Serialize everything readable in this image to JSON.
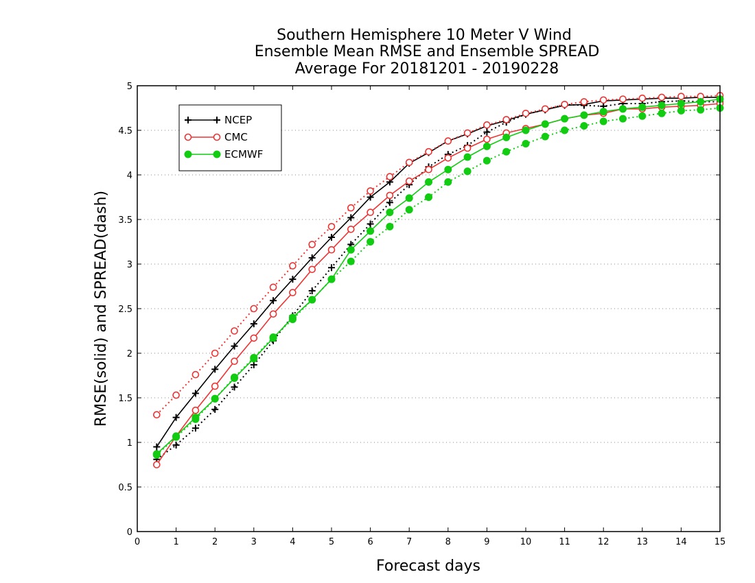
{
  "chart_data": {
    "type": "line",
    "title": [
      "Southern Hemisphere 10 Meter V Wind",
      "Ensemble Mean RMSE and Ensemble SPREAD",
      "Average For 20181201 - 20190228"
    ],
    "xlabel": "Forecast days",
    "ylabel": "RMSE(solid) and SPREAD(dash)",
    "xlim": [
      0,
      15
    ],
    "ylim": [
      0,
      5
    ],
    "xticks": [
      "0",
      "1",
      "2",
      "3",
      "4",
      "5",
      "6",
      "7",
      "8",
      "9",
      "10",
      "11",
      "12",
      "13",
      "14",
      "15"
    ],
    "yticks": [
      "0",
      "0.5",
      "1",
      "1.5",
      "2",
      "2.5",
      "3",
      "3.5",
      "4",
      "4.5",
      "5"
    ],
    "grid": "horizontal dotted",
    "legend_position": "top-left",
    "x": [
      0.5,
      1,
      1.5,
      2,
      2.5,
      3,
      3.5,
      4,
      4.5,
      5,
      5.5,
      6,
      6.5,
      7,
      7.5,
      8,
      8.5,
      9,
      9.5,
      10,
      10.5,
      11,
      11.5,
      12,
      12.5,
      13,
      13.5,
      14,
      14.5,
      15
    ],
    "series": [
      {
        "name": "NCEP",
        "marker": "plus",
        "color": "#000000",
        "rmse": [
          0.95,
          1.28,
          1.55,
          1.82,
          2.08,
          2.33,
          2.59,
          2.83,
          3.07,
          3.3,
          3.52,
          3.75,
          3.92,
          4.13,
          4.25,
          4.38,
          4.46,
          4.55,
          4.61,
          4.68,
          4.73,
          4.78,
          4.79,
          4.83,
          4.84,
          4.85,
          4.86,
          4.86,
          4.87,
          4.87
        ],
        "spread": [
          0.81,
          0.97,
          1.16,
          1.37,
          1.62,
          1.87,
          2.14,
          2.42,
          2.7,
          2.96,
          3.22,
          3.45,
          3.69,
          3.89,
          4.09,
          4.23,
          4.33,
          4.48,
          4.59,
          4.68,
          4.73,
          4.79,
          4.78,
          4.77,
          4.8,
          4.8,
          4.82,
          4.83,
          4.82,
          4.82
        ]
      },
      {
        "name": "CMC",
        "marker": "open-circle",
        "color": "#ee3333",
        "rmse": [
          0.75,
          1.07,
          1.36,
          1.63,
          1.91,
          2.17,
          2.44,
          2.68,
          2.94,
          3.16,
          3.39,
          3.58,
          3.77,
          3.93,
          4.06,
          4.19,
          4.3,
          4.4,
          4.47,
          4.52,
          4.57,
          4.63,
          4.67,
          4.69,
          4.74,
          4.74,
          4.76,
          4.77,
          4.78,
          4.8
        ],
        "spread": [
          1.31,
          1.53,
          1.76,
          2.0,
          2.25,
          2.5,
          2.74,
          2.98,
          3.22,
          3.42,
          3.63,
          3.82,
          3.98,
          4.14,
          4.26,
          4.38,
          4.47,
          4.56,
          4.62,
          4.69,
          4.74,
          4.79,
          4.82,
          4.84,
          4.85,
          4.86,
          4.87,
          4.88,
          4.88,
          4.89
        ]
      },
      {
        "name": "ECMWF",
        "marker": "filled-circle",
        "color": "#11cc11",
        "rmse": [
          0.87,
          1.07,
          1.28,
          1.49,
          1.72,
          1.94,
          2.17,
          2.4,
          2.6,
          2.83,
          3.16,
          3.37,
          3.58,
          3.74,
          3.92,
          4.06,
          4.2,
          4.32,
          4.42,
          4.5,
          4.57,
          4.63,
          4.67,
          4.71,
          4.74,
          4.76,
          4.78,
          4.8,
          4.82,
          4.85
        ],
        "spread": [
          0.86,
          1.06,
          1.26,
          1.49,
          1.73,
          1.95,
          2.18,
          2.38,
          2.6,
          2.83,
          3.03,
          3.25,
          3.42,
          3.61,
          3.75,
          3.92,
          4.04,
          4.16,
          4.26,
          4.35,
          4.43,
          4.5,
          4.55,
          4.6,
          4.63,
          4.66,
          4.69,
          4.72,
          4.73,
          4.75
        ]
      }
    ]
  }
}
